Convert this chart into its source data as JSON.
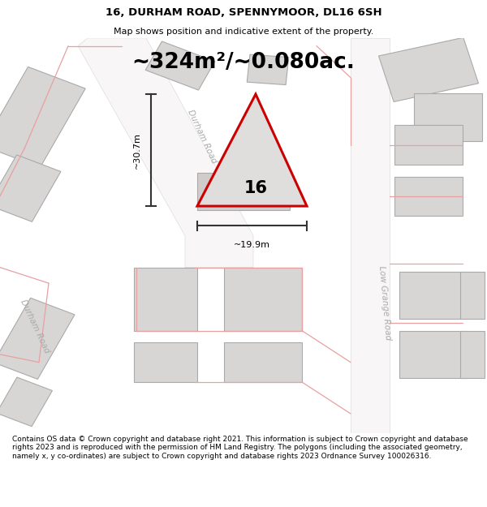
{
  "title": "16, DURHAM ROAD, SPENNYMOOR, DL16 6SH",
  "subtitle": "Map shows position and indicative extent of the property.",
  "area_text": "~324m²/~0.080ac.",
  "footer": "Contains OS data © Crown copyright and database right 2021. This information is subject to Crown copyright and database rights 2023 and is reproduced with the permission of HM Land Registry. The polygons (including the associated geometry, namely x, y co-ordinates) are subject to Crown copyright and database rights 2023 Ordnance Survey 100026316.",
  "property_number": "16",
  "dim_width_text": "~19.9m",
  "dim_height_text": "~30.7m",
  "road_label_durham_center": "Durham Road",
  "road_label_low_grange": "Low Grange Road",
  "road_label_durham_left": "Durham Road",
  "map_bg": "#eeecec",
  "title_bg": "#ffffff",
  "footer_bg": "#ffffff",
  "road_color": "#ffffff",
  "building_fill": "#d8d5d5",
  "building_edge": "#aaaaaa",
  "property_fill": "#e0dddd",
  "property_edge": "#cc0000",
  "red_bg_line": "#e8a0a0",
  "dim_line_color": "#333333",
  "road_label_color": "#aaaaaa",
  "number_color": "#000000"
}
